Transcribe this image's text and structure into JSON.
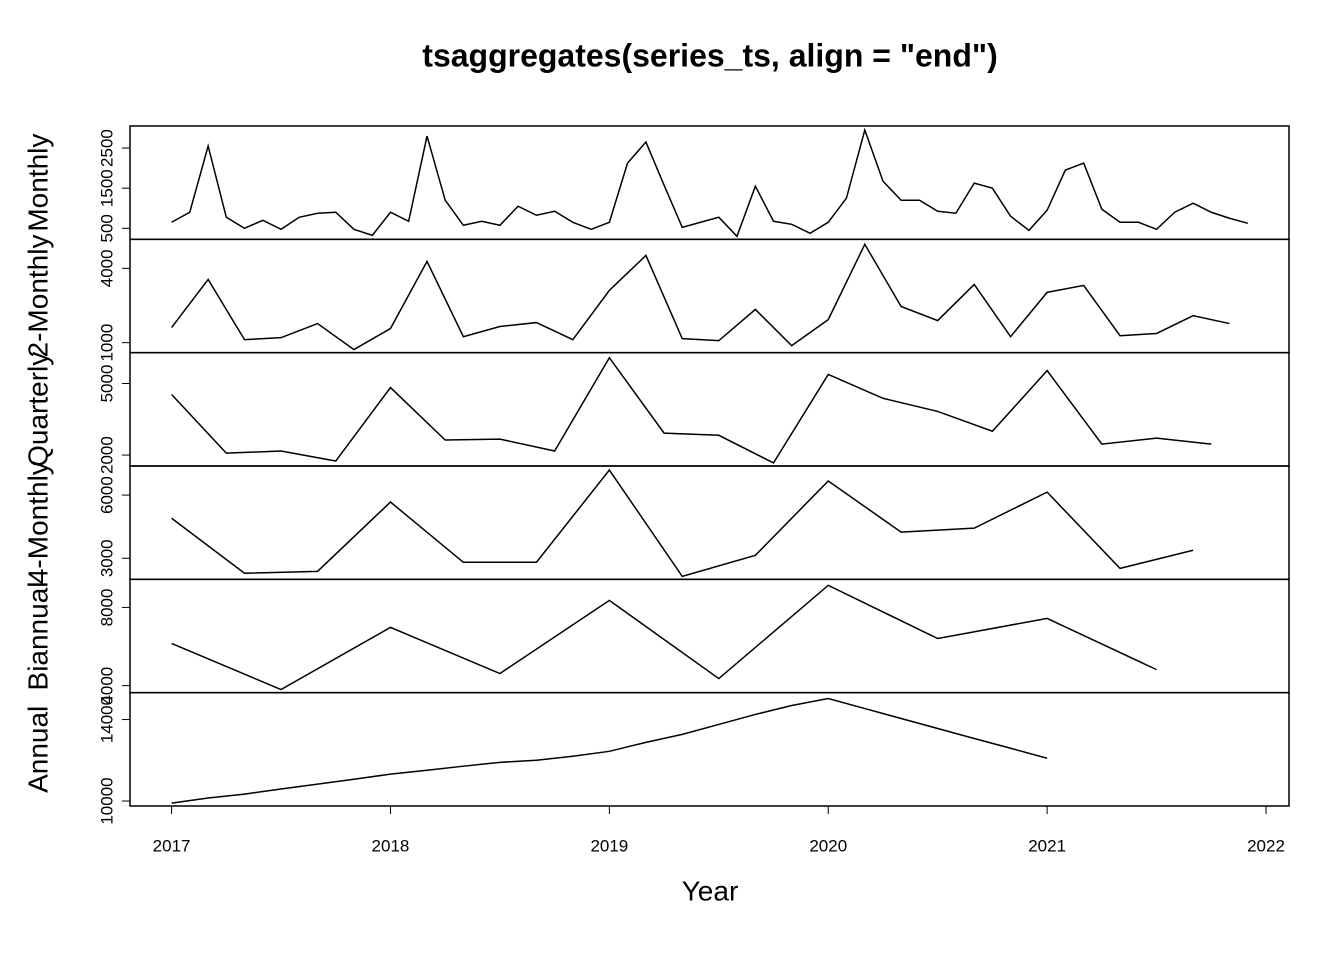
{
  "chart_data": [
    {
      "type": "line",
      "title": "tsaggregates(series_ts, align = \"end\")",
      "ylabel": "Monthly",
      "x": [
        2017,
        2017.083,
        2017.167,
        2017.25,
        2017.333,
        2017.417,
        2017.5,
        2017.583,
        2017.667,
        2017.75,
        2017.833,
        2017.917,
        2018,
        2018.083,
        2018.167,
        2018.25,
        2018.333,
        2018.417,
        2018.5,
        2018.583,
        2018.667,
        2018.75,
        2018.833,
        2018.917,
        2019,
        2019.083,
        2019.167,
        2019.25,
        2019.333,
        2019.417,
        2019.5,
        2019.583,
        2019.667,
        2019.75,
        2019.833,
        2019.917,
        2020,
        2020.083,
        2020.167,
        2020.25,
        2020.333,
        2020.417,
        2020.5,
        2020.583,
        2020.667,
        2020.75,
        2020.833,
        2020.917,
        2021,
        2021.083,
        2021.167,
        2021.25,
        2021.333,
        2021.417,
        2021.5,
        2021.583,
        2021.667,
        2021.75,
        2021.833,
        2021.917
      ],
      "values": [
        650,
        900,
        2550,
        775,
        500,
        700,
        475,
        775,
        875,
        900,
        475,
        325,
        900,
        675,
        2800,
        1200,
        575,
        675,
        575,
        1050,
        825,
        925,
        650,
        475,
        650,
        2125,
        2650,
        1575,
        525,
        650,
        775,
        300,
        1550,
        675,
        600,
        375,
        650,
        1250,
        2950,
        1675,
        1200,
        1200,
        925,
        875,
        1625,
        1500,
        800,
        450,
        950,
        1950,
        2125,
        975,
        650,
        650,
        475,
        900,
        1125,
        900,
        750,
        625
      ],
      "xlim": [
        2016.81,
        2022.105
      ],
      "ylim": [
        225,
        3050
      ],
      "yticks": [
        500,
        1500,
        2500
      ]
    },
    {
      "type": "line",
      "ylabel": "2-Monthly",
      "x": [
        2017,
        2017.167,
        2017.333,
        2017.5,
        2017.667,
        2017.833,
        2018,
        2018.167,
        2018.333,
        2018.5,
        2018.667,
        2018.833,
        2019,
        2019.167,
        2019.333,
        2019.5,
        2019.667,
        2019.833,
        2020,
        2020.167,
        2020.333,
        2020.5,
        2020.667,
        2020.833,
        2021,
        2021.167,
        2021.333,
        2021.5,
        2021.667,
        2021.833
      ],
      "values": [
        1610,
        3550,
        1120,
        1200,
        1770,
        720,
        1570,
        4280,
        1240,
        1650,
        1810,
        1120,
        3110,
        4520,
        1160,
        1080,
        2340,
        880,
        1930,
        4970,
        2460,
        1890,
        3350,
        1240,
        3030,
        3310,
        1280,
        1370,
        2090,
        1770
      ],
      "xlim": [
        2016.81,
        2022.105
      ],
      "ylim": [
        595,
        5171
      ],
      "yticks": [
        1000,
        4000
      ]
    },
    {
      "type": "line",
      "ylabel": "Quarterly",
      "x": [
        2017,
        2017.25,
        2017.5,
        2017.75,
        2018,
        2018.25,
        2018.5,
        2018.75,
        2019,
        2019.25,
        2019.5,
        2019.75,
        2020,
        2020.25,
        2020.5,
        2020.75,
        2021,
        2021.25,
        2021.5,
        2021.75
      ],
      "values": [
        4540,
        2080,
        2170,
        1750,
        4830,
        2630,
        2670,
        2170,
        6080,
        2920,
        2830,
        1670,
        5380,
        4380,
        3830,
        3000,
        5540,
        2460,
        2710,
        2460
      ],
      "xlim": [
        2016.81,
        2022.105
      ],
      "ylim": [
        1542,
        6292
      ],
      "yticks": [
        2000,
        5000
      ]
    },
    {
      "type": "line",
      "ylabel": "4-Monthly",
      "x": [
        2017,
        2017.333,
        2017.667,
        2018,
        2018.333,
        2018.667,
        2019,
        2019.333,
        2019.667,
        2020,
        2020.333,
        2020.667,
        2021,
        2021.333,
        2021.667
      ],
      "values": [
        4900,
        2290,
        2380,
        5670,
        2810,
        2810,
        7190,
        2140,
        3140,
        6670,
        4240,
        4430,
        6140,
        2520,
        3380
      ],
      "xlim": [
        2016.81,
        2022.105
      ],
      "ylim": [
        2000,
        7381
      ],
      "yticks": [
        3000,
        6000
      ]
    },
    {
      "type": "line",
      "ylabel": "Biannual",
      "x": [
        2017,
        2017.5,
        2018,
        2018.5,
        2019,
        2019.5,
        2020,
        2020.5,
        2021,
        2021.5
      ],
      "values": [
        6160,
        3800,
        6980,
        4620,
        8360,
        4360,
        9130,
        6410,
        7440,
        4820
      ],
      "xlim": [
        2016.81,
        2022.105
      ],
      "ylim": [
        3641,
        9438
      ],
      "yticks": [
        4000,
        8000
      ]
    },
    {
      "type": "line",
      "ylabel": "Annual",
      "xlabel": "Year",
      "x": [
        2017,
        2017.167,
        2017.333,
        2017.5,
        2017.667,
        2017.833,
        2018,
        2018.167,
        2018.333,
        2018.5,
        2018.667,
        2018.833,
        2019,
        2019.167,
        2019.333,
        2019.5,
        2019.667,
        2019.833,
        2020,
        2020.167,
        2020.333,
        2020.5,
        2020.667,
        2020.833,
        2021
      ],
      "values": [
        9900,
        10150,
        10340,
        10590,
        10830,
        11070,
        11320,
        11510,
        11710,
        11900,
        12000,
        12200,
        12440,
        12880,
        13270,
        13760,
        14250,
        14690,
        15030,
        14540,
        14050,
        13560,
        13070,
        12590,
        12100
      ],
      "xlim": [
        2016.81,
        2022.105
      ],
      "ylim": [
        9756,
        15319
      ],
      "yticks": [
        10000,
        14000
      ],
      "xticks": [
        2017,
        2018,
        2019,
        2020,
        2021,
        2022
      ]
    }
  ]
}
